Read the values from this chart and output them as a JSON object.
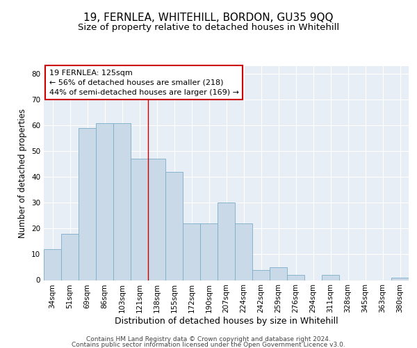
{
  "title": "19, FERNLEA, WHITEHILL, BORDON, GU35 9QQ",
  "subtitle": "Size of property relative to detached houses in Whitehill",
  "xlabel": "Distribution of detached houses by size in Whitehill",
  "ylabel": "Number of detached properties",
  "categories": [
    "34sqm",
    "51sqm",
    "69sqm",
    "86sqm",
    "103sqm",
    "121sqm",
    "138sqm",
    "155sqm",
    "172sqm",
    "190sqm",
    "207sqm",
    "224sqm",
    "242sqm",
    "259sqm",
    "276sqm",
    "294sqm",
    "311sqm",
    "328sqm",
    "345sqm",
    "363sqm",
    "380sqm"
  ],
  "values": [
    12,
    18,
    59,
    61,
    61,
    47,
    47,
    42,
    22,
    22,
    30,
    22,
    4,
    5,
    2,
    0,
    2,
    0,
    0,
    0,
    1
  ],
  "bar_color": "#c9d9e8",
  "bar_edge_color": "#7aaec8",
  "background_color": "#e8eef5",
  "grid_color": "#ffffff",
  "property_line_x": 5.5,
  "annotation_line1": "19 FERNLEA: 125sqm",
  "annotation_line2": "← 56% of detached houses are smaller (218)",
  "annotation_line3": "44% of semi-detached houses are larger (169) →",
  "annotation_box_color": "#ffffff",
  "annotation_border_color": "#cc0000",
  "vline_color": "#cc0000",
  "ylim": [
    0,
    83
  ],
  "yticks": [
    0,
    10,
    20,
    30,
    40,
    50,
    60,
    70,
    80
  ],
  "footer_line1": "Contains HM Land Registry data © Crown copyright and database right 2024.",
  "footer_line2": "Contains public sector information licensed under the Open Government Licence v3.0.",
  "title_fontsize": 11,
  "subtitle_fontsize": 9.5,
  "xlabel_fontsize": 9,
  "ylabel_fontsize": 8.5,
  "tick_fontsize": 7.5,
  "annotation_fontsize": 8,
  "footer_fontsize": 6.5
}
